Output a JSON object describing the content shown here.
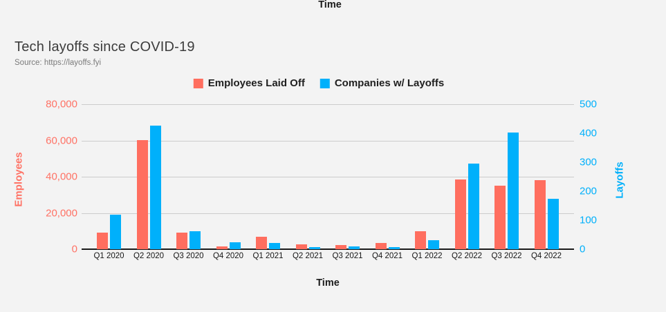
{
  "page": {
    "top_axis_label": "Time",
    "background": "#f3f3f3"
  },
  "header": {
    "title": "Tech layoffs since COVID-19",
    "source": "Source: https://layoffs.fyi"
  },
  "legend": {
    "items": [
      {
        "label": "Employees Laid Off",
        "color": "#ff6e5f"
      },
      {
        "label": "Companies w/ Layoffs",
        "color": "#00b0fb"
      }
    ]
  },
  "chart_data": {
    "type": "bar",
    "title": "Tech layoffs since COVID-19",
    "xlabel": "Time",
    "categories": [
      "Q1 2020",
      "Q2 2020",
      "Q3 2020",
      "Q4 2020",
      "Q1 2021",
      "Q2 2021",
      "Q3 2021",
      "Q4 2021",
      "Q1 2022",
      "Q2 2022",
      "Q3 2022",
      "Q4 2022"
    ],
    "series": [
      {
        "name": "Employees Laid Off",
        "axis": "left",
        "color": "#ff6e5f",
        "values": [
          9300,
          60200,
          9300,
          1400,
          6900,
          2800,
          2300,
          3300,
          9900,
          38500,
          35000,
          38200
        ]
      },
      {
        "name": "Companies w/ Layoffs",
        "axis": "right",
        "color": "#00b0fb",
        "values": [
          120,
          427,
          61,
          24,
          21,
          6,
          10,
          6,
          30,
          296,
          403,
          173
        ]
      }
    ],
    "left_axis": {
      "label": "Employees",
      "color": "#ff7265",
      "min": 0,
      "max": 80000,
      "tick_values": [
        80000,
        60000,
        40000,
        20000,
        0
      ],
      "tick_labels": [
        "80,000",
        "60,000",
        "40,000",
        "20,000",
        "0"
      ]
    },
    "right_axis": {
      "label": "Layoffs",
      "color": "#00b0fb",
      "min": 0,
      "max": 500,
      "tick_values": [
        500,
        400,
        300,
        200,
        100,
        0
      ],
      "tick_labels": [
        "500",
        "400",
        "300",
        "200",
        "100",
        "0"
      ]
    },
    "grid": true,
    "legend_position": "top-center"
  }
}
